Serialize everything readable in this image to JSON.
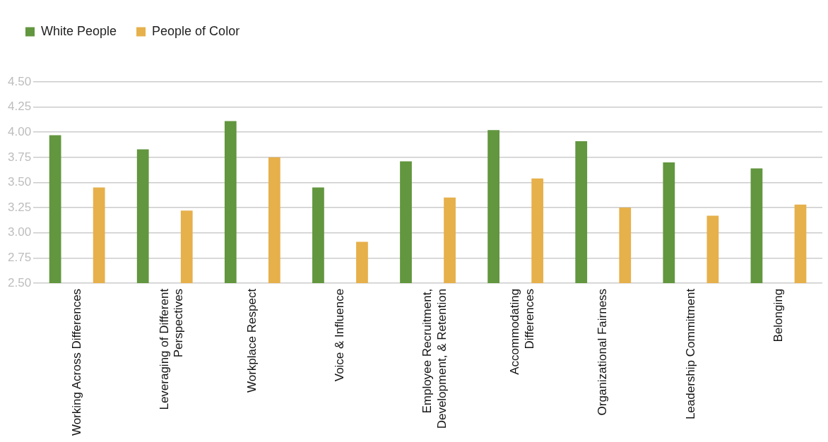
{
  "chart_data": {
    "type": "bar",
    "categories": [
      "Working Across Differences",
      "Leveraging of Different Perspectives",
      "Workplace Respect",
      "Voice & Influence",
      "Employee Recruitment, Development, & Retention",
      "Accommodating Differences",
      "Organizational Fairness",
      "Leadership Commitment",
      "Belonging"
    ],
    "series": [
      {
        "name": "White People",
        "color": "#62963f",
        "values": [
          3.97,
          3.83,
          4.11,
          3.45,
          3.71,
          4.02,
          3.91,
          3.7,
          3.64
        ]
      },
      {
        "name": "People of Color",
        "color": "#e6b04b",
        "values": [
          3.45,
          3.22,
          3.75,
          2.91,
          3.35,
          3.54,
          3.25,
          3.17,
          3.28
        ]
      }
    ],
    "ylim": [
      2.5,
      4.5
    ],
    "yticks": [
      {
        "value": 2.5,
        "label": "2.50"
      },
      {
        "value": 2.75,
        "label": "2.75"
      },
      {
        "value": 3,
        "label": "3.00"
      },
      {
        "value": 3.25,
        "label": "3.25"
      },
      {
        "value": 3.5,
        "label": "3.50"
      },
      {
        "value": 3.75,
        "label": "3.75"
      },
      {
        "value": 4,
        "label": "4.00"
      },
      {
        "value": 4.25,
        "label": "4.25"
      },
      {
        "value": 4.5,
        "label": "4.50"
      }
    ],
    "grid": "y",
    "legend": "top left"
  }
}
